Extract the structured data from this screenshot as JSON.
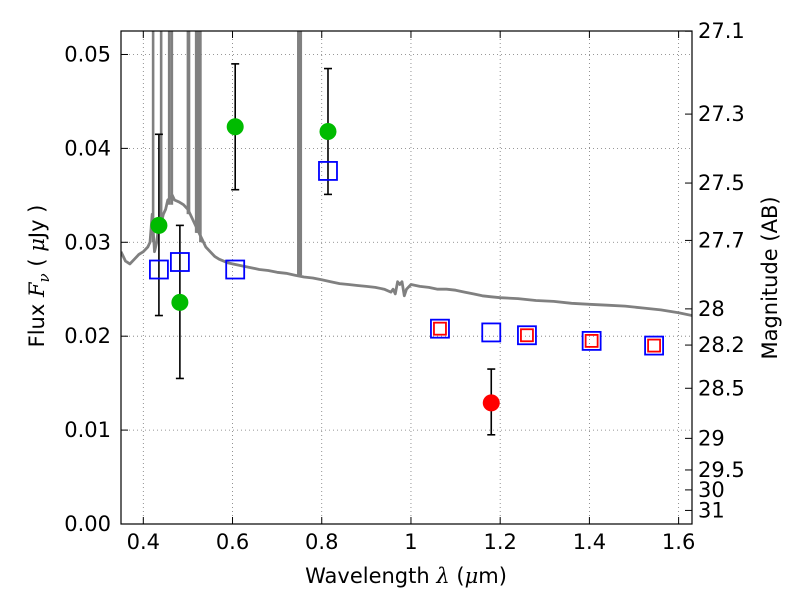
{
  "chart_data": {
    "type": "scatter",
    "xlabel": {
      "text": "Wavelength",
      "symbol": "λ",
      "unit_open": "(",
      "unit_mu": "μ",
      "unit_rest": "m)"
    },
    "ylabel": {
      "text": "Flux",
      "symbol": "F",
      "subscript": "ν",
      "unit_open": "(",
      "unit_mu": "μ",
      "unit_rest": "Jy )"
    },
    "y2label": "Magnitude (AB)",
    "xlim": [
      0.35,
      1.63
    ],
    "ylim": [
      0.0,
      0.0525
    ],
    "grid": true,
    "x_ticks": [
      {
        "value": 0.4,
        "label": "0.4"
      },
      {
        "value": 0.6,
        "label": "0.6"
      },
      {
        "value": 0.8,
        "label": "0.8"
      },
      {
        "value": 1.0,
        "label": "1"
      },
      {
        "value": 1.2,
        "label": "1.2"
      },
      {
        "value": 1.4,
        "label": "1.4"
      },
      {
        "value": 1.6,
        "label": "1.6"
      }
    ],
    "y_ticks": [
      {
        "value": 0.0,
        "label": "0.00"
      },
      {
        "value": 0.01,
        "label": "0.01"
      },
      {
        "value": 0.02,
        "label": "0.02"
      },
      {
        "value": 0.03,
        "label": "0.03"
      },
      {
        "value": 0.04,
        "label": "0.04"
      },
      {
        "value": 0.05,
        "label": "0.05"
      }
    ],
    "y2_ticks": [
      {
        "label": "27.1",
        "magnitude": 27.1
      },
      {
        "label": "27.3",
        "magnitude": 27.3
      },
      {
        "label": "27.5",
        "magnitude": 27.5
      },
      {
        "label": "27.7",
        "magnitude": 27.7
      },
      {
        "label": "28",
        "magnitude": 28.0
      },
      {
        "label": "28.2",
        "magnitude": 28.2
      },
      {
        "label": "28.5",
        "magnitude": 28.5
      },
      {
        "label": "29",
        "magnitude": 29.0
      },
      {
        "label": "29.5",
        "magnitude": 29.5
      },
      {
        "label": "30",
        "magnitude": 30.0
      },
      {
        "label": "31",
        "magnitude": 31.0
      }
    ],
    "series": [
      {
        "kind": "line",
        "color": "#808080",
        "points": [
          [
            0.35,
            0.029
          ],
          [
            0.36,
            0.028
          ],
          [
            0.37,
            0.0277
          ],
          [
            0.38,
            0.0282
          ],
          [
            0.39,
            0.0287
          ],
          [
            0.4,
            0.029
          ],
          [
            0.41,
            0.0295
          ],
          [
            0.415,
            0.03
          ],
          [
            0.42,
            0.033
          ],
          [
            0.425,
            0.029
          ],
          [
            0.43,
            0.03
          ],
          [
            0.435,
            0.032
          ],
          [
            0.44,
            0.032
          ],
          [
            0.445,
            0.033
          ],
          [
            0.45,
            0.0335
          ],
          [
            0.455,
            0.0345
          ],
          [
            0.46,
            0.0347
          ],
          [
            0.465,
            0.035
          ],
          [
            0.47,
            0.0345
          ],
          [
            0.48,
            0.0343
          ],
          [
            0.49,
            0.034
          ],
          [
            0.5,
            0.0335
          ],
          [
            0.51,
            0.0325
          ],
          [
            0.52,
            0.0315
          ],
          [
            0.53,
            0.0305
          ],
          [
            0.54,
            0.0295
          ],
          [
            0.55,
            0.029
          ],
          [
            0.56,
            0.0285
          ],
          [
            0.57,
            0.0282
          ],
          [
            0.58,
            0.028
          ],
          [
            0.59,
            0.0278
          ],
          [
            0.6,
            0.0277
          ],
          [
            0.62,
            0.0275
          ],
          [
            0.64,
            0.0273
          ],
          [
            0.66,
            0.0271
          ],
          [
            0.68,
            0.027
          ],
          [
            0.7,
            0.0268
          ],
          [
            0.72,
            0.0267
          ],
          [
            0.74,
            0.0265
          ],
          [
            0.76,
            0.0263
          ],
          [
            0.78,
            0.0262
          ],
          [
            0.8,
            0.026
          ],
          [
            0.82,
            0.0258
          ],
          [
            0.84,
            0.0256
          ],
          [
            0.86,
            0.0255
          ],
          [
            0.88,
            0.0254
          ],
          [
            0.9,
            0.0253
          ],
          [
            0.92,
            0.0252
          ],
          [
            0.94,
            0.025
          ],
          [
            0.955,
            0.0247
          ],
          [
            0.96,
            0.025
          ],
          [
            0.965,
            0.0245
          ],
          [
            0.97,
            0.0258
          ],
          [
            0.975,
            0.0255
          ],
          [
            0.98,
            0.0258
          ],
          [
            0.985,
            0.0243
          ],
          [
            0.99,
            0.025
          ],
          [
            1.0,
            0.0255
          ],
          [
            1.02,
            0.0253
          ],
          [
            1.04,
            0.0252
          ],
          [
            1.06,
            0.025
          ],
          [
            1.08,
            0.025
          ],
          [
            1.1,
            0.0249
          ],
          [
            1.12,
            0.0247
          ],
          [
            1.14,
            0.0245
          ],
          [
            1.16,
            0.0243
          ],
          [
            1.18,
            0.0242
          ],
          [
            1.2,
            0.0241
          ],
          [
            1.24,
            0.024
          ],
          [
            1.28,
            0.0238
          ],
          [
            1.32,
            0.0237
          ],
          [
            1.36,
            0.0235
          ],
          [
            1.4,
            0.0234
          ],
          [
            1.44,
            0.0233
          ],
          [
            1.48,
            0.0232
          ],
          [
            1.52,
            0.023
          ],
          [
            1.56,
            0.0228
          ],
          [
            1.6,
            0.0225
          ],
          [
            1.63,
            0.0222
          ]
        ],
        "emission_lines": [
          {
            "x": 0.422,
            "peak": 0.0525,
            "base": 0.03
          },
          {
            "x": 0.44,
            "peak": 0.0525,
            "base": 0.032
          },
          {
            "x": 0.458,
            "peak": 0.0525,
            "base": 0.034
          },
          {
            "x": 0.464,
            "peak": 0.0525,
            "base": 0.034
          },
          {
            "x": 0.5,
            "peak": 0.0525,
            "base": 0.033
          },
          {
            "x": 0.5025,
            "peak": 0.0525,
            "base": 0.033
          },
          {
            "x": 0.5185,
            "peak": 0.0525,
            "base": 0.031
          },
          {
            "x": 0.521,
            "peak": 0.0525,
            "base": 0.031
          },
          {
            "x": 0.5255,
            "peak": 0.0525,
            "base": 0.031
          },
          {
            "x": 0.528,
            "peak": 0.0525,
            "base": 0.03
          },
          {
            "x": 0.7475,
            "peak": 0.0525,
            "base": 0.0265
          },
          {
            "x": 0.753,
            "peak": 0.0525,
            "base": 0.0265
          }
        ]
      },
      {
        "kind": "errorbar",
        "color": "#00bb00",
        "points": [
          {
            "x": 0.435,
            "y": 0.0318,
            "ylo": 0.0222,
            "yhi": 0.0415
          },
          {
            "x": 0.482,
            "y": 0.0236,
            "ylo": 0.0155,
            "yhi": 0.0318
          },
          {
            "x": 0.606,
            "y": 0.0423,
            "ylo": 0.0356,
            "yhi": 0.049
          },
          {
            "x": 0.814,
            "y": 0.0418,
            "ylo": 0.0351,
            "yhi": 0.0485
          }
        ]
      },
      {
        "kind": "errorbar",
        "color": "#ff0000",
        "points": [
          {
            "x": 1.18,
            "y": 0.0129,
            "ylo": 0.0095,
            "yhi": 0.0165
          }
        ]
      },
      {
        "kind": "open-square",
        "color": "#0000ff",
        "points": [
          {
            "x": 0.435,
            "y": 0.0271
          },
          {
            "x": 0.482,
            "y": 0.0279
          },
          {
            "x": 0.606,
            "y": 0.0271
          },
          {
            "x": 0.814,
            "y": 0.0376
          },
          {
            "x": 1.065,
            "y": 0.0208
          },
          {
            "x": 1.18,
            "y": 0.0204
          },
          {
            "x": 1.26,
            "y": 0.0201
          },
          {
            "x": 1.405,
            "y": 0.0195
          },
          {
            "x": 1.545,
            "y": 0.019
          }
        ]
      },
      {
        "kind": "open-square",
        "color": "#ff0000",
        "points": [
          {
            "x": 1.065,
            "y": 0.0208
          },
          {
            "x": 1.26,
            "y": 0.0201
          },
          {
            "x": 1.405,
            "y": 0.0195
          },
          {
            "x": 1.545,
            "y": 0.019
          }
        ]
      }
    ]
  }
}
